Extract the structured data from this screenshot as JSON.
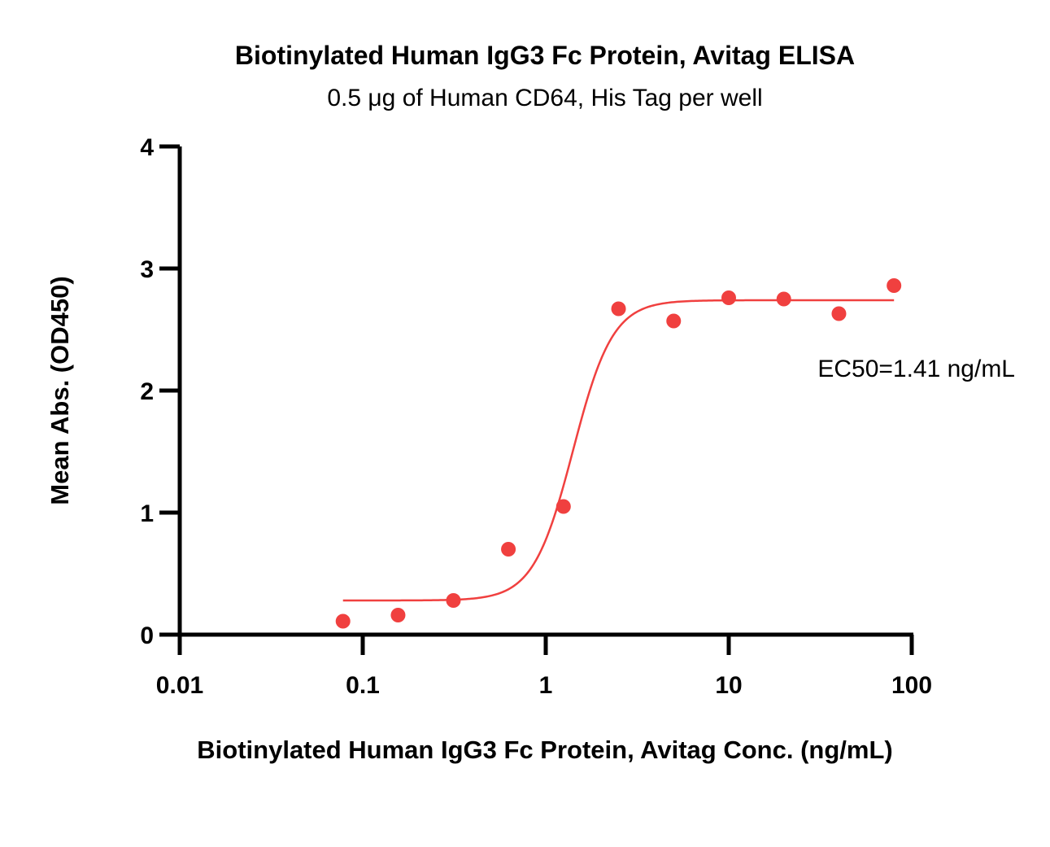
{
  "chart_data": {
    "type": "scatter",
    "title": "Biotinylated Human IgG3 Fc Protein, Avitag ELISA",
    "subtitle": "0.5 μg of Human CD64, His Tag per well",
    "xlabel": "Biotinylated Human IgG3 Fc Protein, Avitag Conc. (ng/mL)",
    "ylabel": "Mean Abs. (OD450)",
    "x_scale": "log",
    "xlim": [
      0.01,
      100
    ],
    "ylim": [
      0,
      4
    ],
    "x_ticks": [
      "0.01",
      "0.1",
      "1",
      "10",
      "100"
    ],
    "y_ticks": [
      "0",
      "1",
      "2",
      "3",
      "4"
    ],
    "grid": false,
    "annotation": "EC50=1.41 ng/mL",
    "colors": {
      "series": "#f0403f",
      "axis": "#000000"
    },
    "points": [
      {
        "x": 0.078,
        "y": 0.11
      },
      {
        "x": 0.156,
        "y": 0.16
      },
      {
        "x": 0.313,
        "y": 0.28
      },
      {
        "x": 0.625,
        "y": 0.7
      },
      {
        "x": 1.25,
        "y": 1.05
      },
      {
        "x": 2.5,
        "y": 2.67
      },
      {
        "x": 5,
        "y": 2.57
      },
      {
        "x": 10,
        "y": 2.76
      },
      {
        "x": 20,
        "y": 2.75
      },
      {
        "x": 40,
        "y": 2.63
      },
      {
        "x": 80,
        "y": 2.86
      }
    ],
    "fit": {
      "model": "4PL",
      "bottom": 0.28,
      "top": 2.74,
      "ec50": 1.41,
      "hill": 4.0,
      "x_range": [
        0.078,
        80
      ]
    }
  }
}
